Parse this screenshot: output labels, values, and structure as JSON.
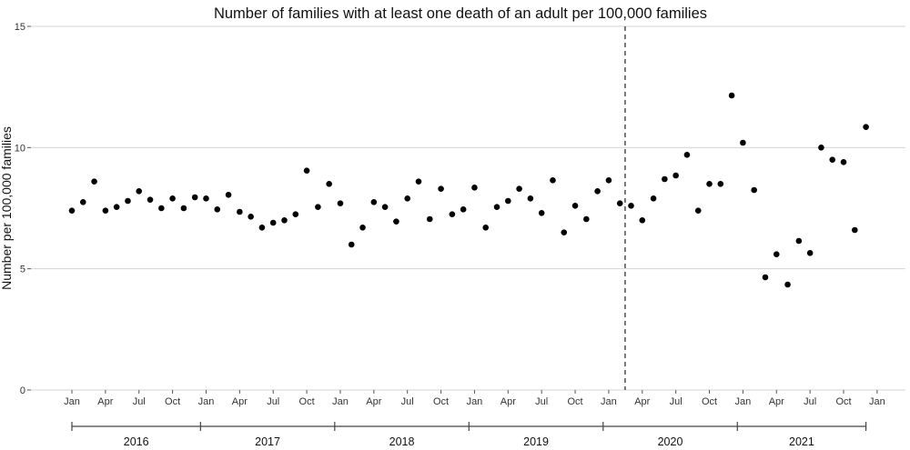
{
  "chart_data": {
    "type": "scatter",
    "title": "Number of families with at least one death of an adult per 100,000 families",
    "xlabel": "",
    "ylabel": "Number per 100,000 families",
    "ylim": [
      0,
      15
    ],
    "y_ticks": [
      0,
      5,
      10,
      15
    ],
    "grid": "horizontal",
    "legend": "none",
    "x_ticks": [
      {
        "label": "Jan",
        "date": "2016-01"
      },
      {
        "label": "Apr",
        "date": "2016-04"
      },
      {
        "label": "Jul",
        "date": "2016-07"
      },
      {
        "label": "Oct",
        "date": "2016-10"
      },
      {
        "label": "Jan",
        "date": "2017-01"
      },
      {
        "label": "Apr",
        "date": "2017-04"
      },
      {
        "label": "Jul",
        "date": "2017-07"
      },
      {
        "label": "Oct",
        "date": "2017-10"
      },
      {
        "label": "Jan",
        "date": "2018-01"
      },
      {
        "label": "Apr",
        "date": "2018-04"
      },
      {
        "label": "Jul",
        "date": "2018-07"
      },
      {
        "label": "Oct",
        "date": "2018-10"
      },
      {
        "label": "Jan",
        "date": "2019-01"
      },
      {
        "label": "Apr",
        "date": "2019-04"
      },
      {
        "label": "Jul",
        "date": "2019-07"
      },
      {
        "label": "Oct",
        "date": "2019-10"
      },
      {
        "label": "Jan",
        "date": "2020-01"
      },
      {
        "label": "Apr",
        "date": "2020-04"
      },
      {
        "label": "Jul",
        "date": "2020-07"
      },
      {
        "label": "Oct",
        "date": "2020-10"
      },
      {
        "label": "Jan",
        "date": "2021-01"
      },
      {
        "label": "Apr",
        "date": "2021-04"
      },
      {
        "label": "Jul",
        "date": "2021-07"
      },
      {
        "label": "Oct",
        "date": "2021-10"
      },
      {
        "label": "Jan",
        "date": "2022-01"
      }
    ],
    "years": [
      "2016",
      "2017",
      "2018",
      "2019",
      "2020",
      "2021"
    ],
    "vline_date": "2020-02-15",
    "series": [
      {
        "x": [
          "2016-01",
          "2016-02",
          "2016-03",
          "2016-04",
          "2016-05",
          "2016-06",
          "2016-07",
          "2016-08",
          "2016-09",
          "2016-10",
          "2016-11",
          "2016-12",
          "2017-01",
          "2017-02",
          "2017-03",
          "2017-04",
          "2017-05",
          "2017-06",
          "2017-07",
          "2017-08",
          "2017-09",
          "2017-10",
          "2017-11",
          "2017-12",
          "2018-01",
          "2018-02",
          "2018-03",
          "2018-04",
          "2018-05",
          "2018-06",
          "2018-07",
          "2018-08",
          "2018-09",
          "2018-10",
          "2018-11",
          "2018-12",
          "2019-01",
          "2019-02",
          "2019-03",
          "2019-04",
          "2019-05",
          "2019-06",
          "2019-07",
          "2019-08",
          "2019-09",
          "2019-10",
          "2019-11",
          "2019-12",
          "2020-01",
          "2020-02",
          "2020-03",
          "2020-04",
          "2020-05",
          "2020-06",
          "2020-07",
          "2020-08",
          "2020-09",
          "2020-10",
          "2020-11",
          "2020-12",
          "2021-01",
          "2021-02",
          "2021-03",
          "2021-04",
          "2021-05",
          "2021-06",
          "2021-07",
          "2021-08",
          "2021-09",
          "2021-10",
          "2021-11",
          "2021-12"
        ],
        "y": [
          7.4,
          7.75,
          8.6,
          7.4,
          7.55,
          7.8,
          8.2,
          7.85,
          7.5,
          7.9,
          7.5,
          7.95,
          7.9,
          7.45,
          8.05,
          7.35,
          7.15,
          6.7,
          6.9,
          7.0,
          7.25,
          9.05,
          7.55,
          8.5,
          7.7,
          6.0,
          6.7,
          7.75,
          7.55,
          6.95,
          7.9,
          8.6,
          7.05,
          8.3,
          7.25,
          7.45,
          8.35,
          6.7,
          7.55,
          7.8,
          8.3,
          7.9,
          7.3,
          8.65,
          6.5,
          7.6,
          7.05,
          8.2,
          8.65,
          7.7,
          7.6,
          7.0,
          7.9,
          8.7,
          8.85,
          9.7,
          7.4,
          8.5,
          8.5,
          12.15,
          10.2,
          8.25,
          4.65,
          5.6,
          4.35,
          6.15,
          5.65,
          10.0,
          9.5,
          9.4,
          6.6,
          10.85
        ]
      }
    ]
  }
}
